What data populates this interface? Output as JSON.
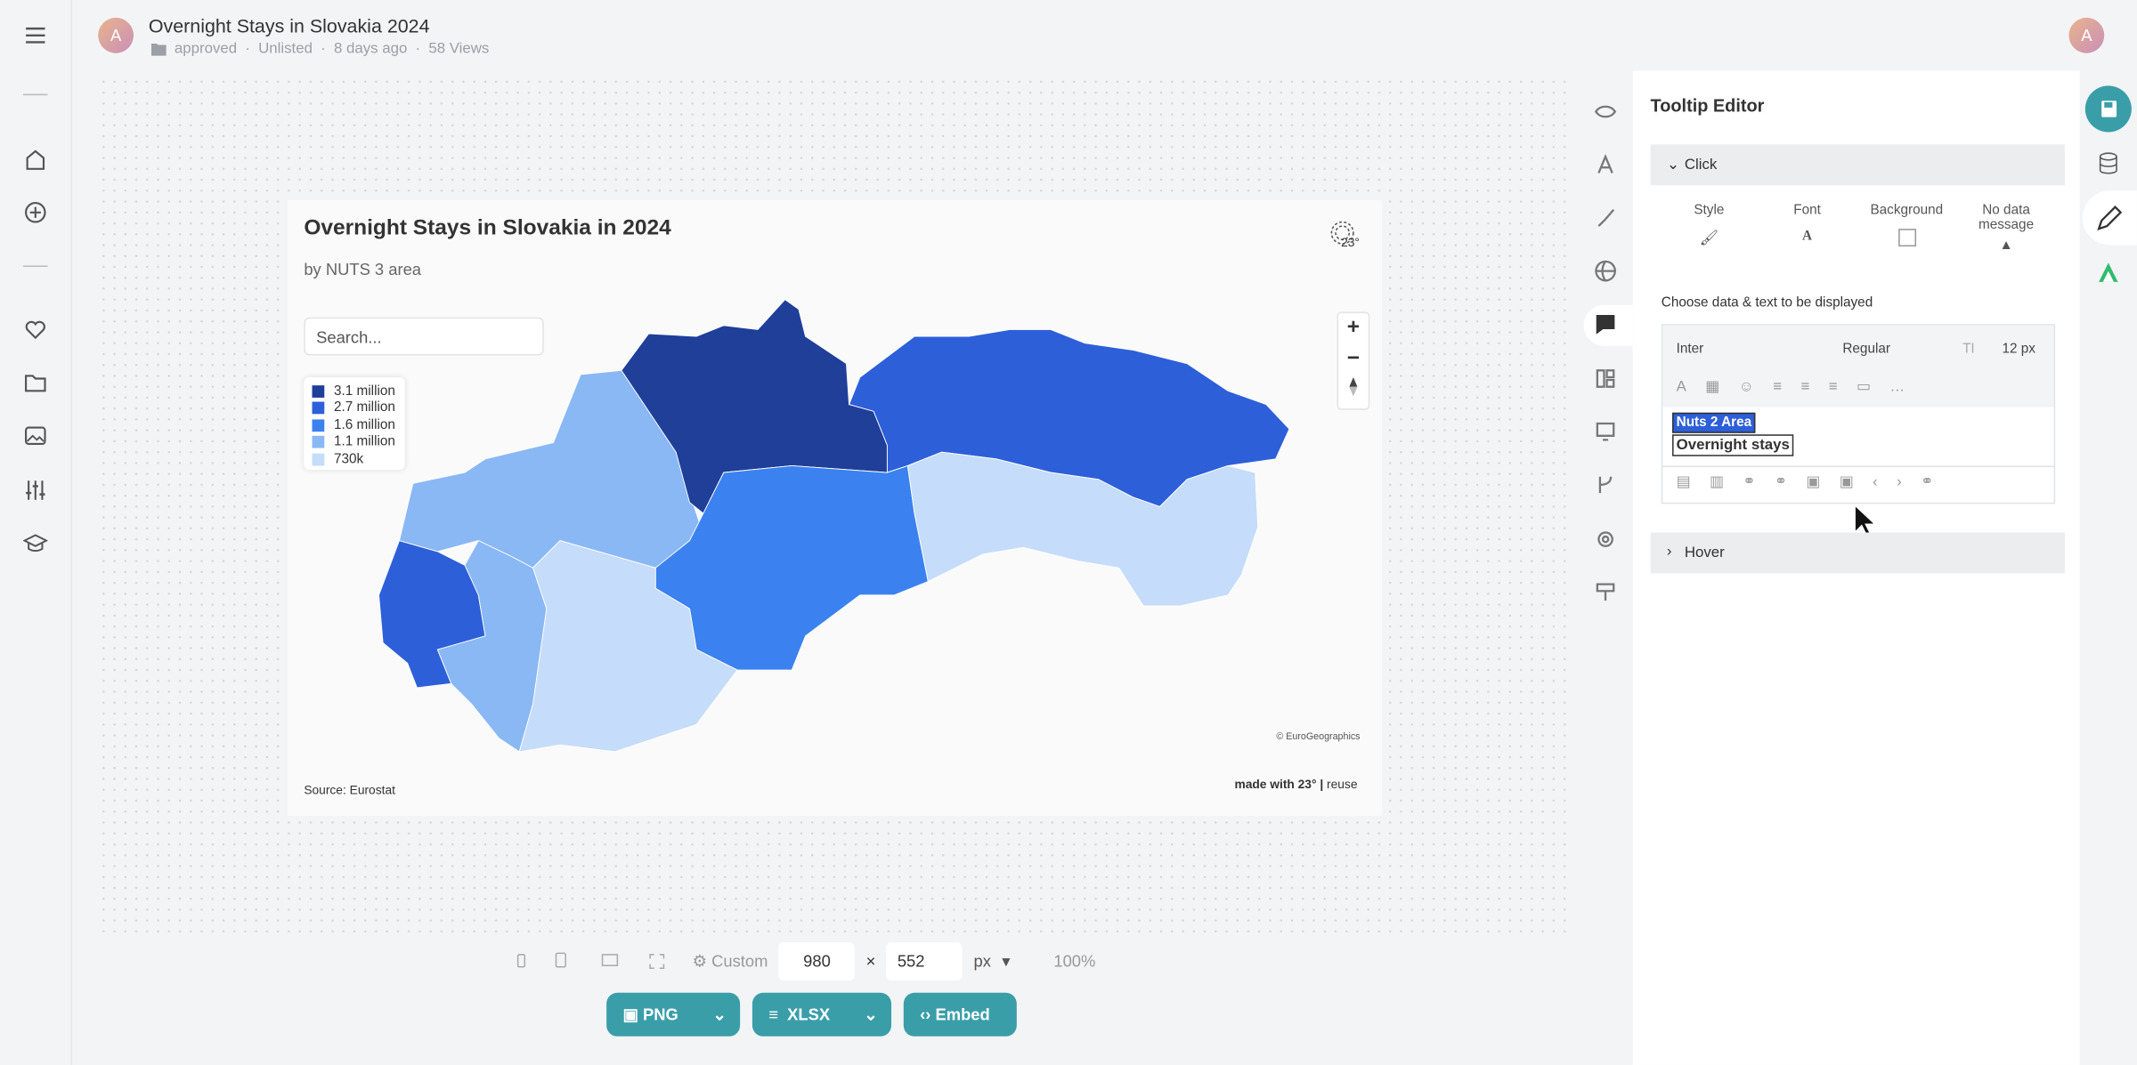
{
  "header": {
    "avatar": "A",
    "title": "Overnight Stays in Slovakia 2024",
    "meta": [
      "approved",
      "Unlisted",
      "8 days ago",
      "58 Views"
    ],
    "user_avatar": "A"
  },
  "chart_card": {
    "title": "Overnight Stays in Slovakia in 2024",
    "subtitle": "by NUTS 3 area",
    "search_placeholder": "Search...",
    "zoom": [
      "+",
      "−"
    ],
    "legend": [
      "3.1 million",
      "2.7 million",
      "1.6 million",
      "1.1 million",
      "730k"
    ],
    "attribution": "© EuroGeographics",
    "source": "Source: Eurostat",
    "credit": "made with 23°",
    "reuse": "reuse",
    "logo": "23°"
  },
  "toolbar": {
    "preset": "Custom",
    "width": "980",
    "times": "×",
    "height": "552",
    "unit": "px",
    "zoom": "100%"
  },
  "export_buttons": [
    "PNG",
    "XLSX",
    "Embed"
  ],
  "tooltip_editor": {
    "title": "Tooltip Editor",
    "sections": [
      "Click",
      "Hover"
    ],
    "options": [
      "Style",
      "Font",
      "Background",
      "No data message"
    ],
    "choose_label": "Choose data & text to be displayed",
    "font": "Inter",
    "weight": "Regular",
    "size": "12 px",
    "content": [
      "Nuts 2 Area",
      "Overnight stays"
    ]
  }
}
